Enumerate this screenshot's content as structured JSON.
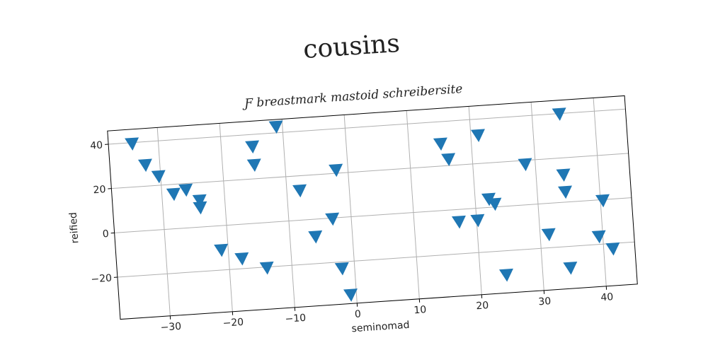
{
  "chart_data": {
    "type": "scatter",
    "title": "cousins",
    "subtitle": "Ƒ breastmark mastoid schreibersite",
    "x_label": "seminomad",
    "y_label": "reified",
    "color": "#1f77b4",
    "marker": "triangle_down",
    "grid": true,
    "xlim": [
      -38,
      45
    ],
    "ylim": [
      -39,
      46
    ],
    "xticks": [
      {
        "value": -30,
        "label": "−30"
      },
      {
        "value": -20,
        "label": "−20"
      },
      {
        "value": -10,
        "label": "−10"
      },
      0,
      10,
      20,
      30,
      40
    ],
    "yticks": [
      {
        "value": -20,
        "label": "−20"
      },
      0,
      20,
      40
    ],
    "x": [
      -34.2,
      -32.3,
      -30.3,
      -28.1,
      -26.1,
      -24.0,
      -24.0,
      -21.1,
      -17.9,
      -15.0,
      -14.9,
      -14.0,
      -11.0,
      -7.9,
      -5.9,
      -3.0,
      -1.9,
      -2.0,
      -0.9,
      15.1,
      16.2,
      17.2,
      20.2,
      21.2,
      22.2,
      23.1,
      24.2,
      28.4,
      31.4,
      34.4,
      34.4,
      34.5,
      34.5,
      39.4,
      40.4,
      41.5
    ],
    "y": [
      39.6,
      29.6,
      24.1,
      15.7,
      17.2,
      12.0,
      8.8,
      -10.9,
      -15.4,
      34.6,
      26.3,
      -20.3,
      42.8,
      13.4,
      -7.8,
      -0.3,
      21.5,
      -22.9,
      -35.0,
      30.1,
      22.9,
      -5.5,
      -5.4,
      32.8,
      3.8,
      1.4,
      -30.8,
      18.3,
      -13.9,
      39.9,
      12.4,
      4.7,
      -29.6,
      -16.4,
      -0.3,
      -22.3
    ]
  }
}
